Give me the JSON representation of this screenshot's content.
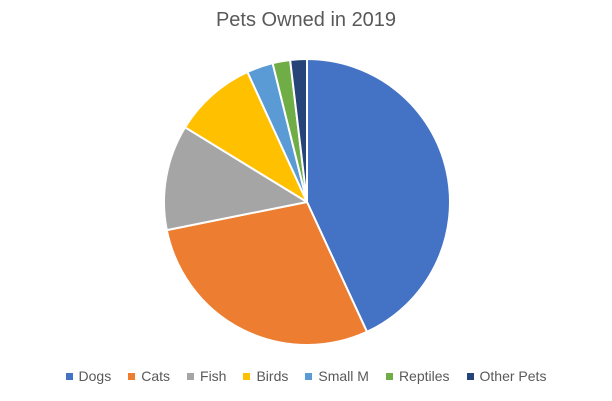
{
  "chart_data": {
    "type": "pie",
    "title": "Pets Owned in 2019",
    "categories": [
      "Dogs",
      "Cats",
      "Fish",
      "Birds",
      "Small M",
      "Reptiles",
      "Other Pets"
    ],
    "values": [
      43.5,
      29,
      12,
      9.5,
      3,
      2,
      1.9
    ],
    "colors": [
      "#4472C4",
      "#ED7D31",
      "#A5A5A5",
      "#FFC000",
      "#5B9BD5",
      "#70AD47",
      "#264478"
    ],
    "start_angle_deg": 0,
    "direction": "clockwise",
    "legend_position": "bottom"
  }
}
